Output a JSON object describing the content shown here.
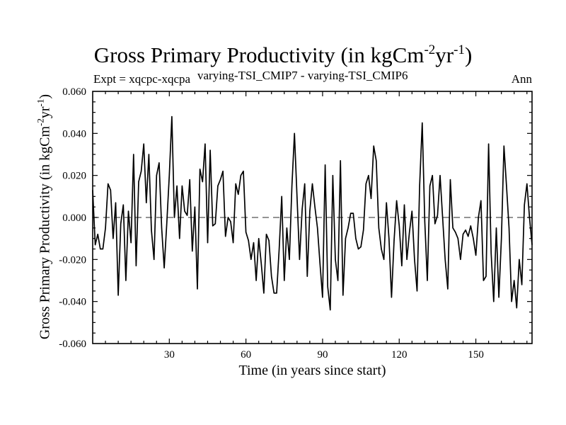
{
  "chart_data": {
    "type": "line",
    "title": {
      "main": "Gross Primary Productivity (in kgCm",
      "sup1": "-2",
      "mid": "yr",
      "sup2": "-1",
      "end": ")"
    },
    "subtitle_left": "Expt = xqcpc-xqcpa",
    "subtitle_center": "varying-TSI_CMIP7 - varying-TSI_CMIP6",
    "subtitle_right": "Ann",
    "xlabel": "Time (in years since start)",
    "ylabel": {
      "main": "Gross Primary Productivity (in kgCm",
      "sup1": "-2",
      "mid": "yr",
      "sup2": "-1",
      "end": ")"
    },
    "xlim": [
      0,
      172
    ],
    "ylim": [
      -0.06,
      0.06
    ],
    "xticks": [
      30,
      60,
      90,
      120,
      150
    ],
    "yticks": [
      -0.06,
      -0.04,
      -0.02,
      0.0,
      0.02,
      0.04,
      0.06
    ],
    "ytick_labels": [
      "-0.060",
      "-0.040",
      "-0.020",
      "0.000",
      "0.020",
      "0.040",
      "0.060"
    ],
    "reference_line": 0.0,
    "x": [
      0,
      1,
      2,
      3,
      4,
      5,
      6,
      7,
      8,
      9,
      10,
      11,
      12,
      13,
      14,
      15,
      16,
      17,
      18,
      19,
      20,
      21,
      22,
      23,
      24,
      25,
      26,
      27,
      28,
      29,
      30,
      31,
      32,
      33,
      34,
      35,
      36,
      37,
      38,
      39,
      40,
      41,
      42,
      43,
      44,
      45,
      46,
      47,
      48,
      49,
      50,
      51,
      52,
      53,
      54,
      55,
      56,
      57,
      58,
      59,
      60,
      61,
      62,
      63,
      64,
      65,
      66,
      67,
      68,
      69,
      70,
      71,
      72,
      73,
      74,
      75,
      76,
      77,
      78,
      79,
      80,
      81,
      82,
      83,
      84,
      85,
      86,
      87,
      88,
      89,
      90,
      91,
      92,
      93,
      94,
      95,
      96,
      97,
      98,
      99,
      100,
      101,
      102,
      103,
      104,
      105,
      106,
      107,
      108,
      109,
      110,
      111,
      112,
      113,
      114,
      115,
      116,
      117,
      118,
      119,
      120,
      121,
      122,
      123,
      124,
      125,
      126,
      127,
      128,
      129,
      130,
      131,
      132,
      133,
      134,
      135,
      136,
      137,
      138,
      139,
      140,
      141,
      142,
      143,
      144,
      145,
      146,
      147,
      148,
      149,
      150,
      151,
      152,
      153,
      154,
      155,
      156,
      157,
      158,
      159,
      160,
      161,
      162,
      163,
      164,
      165,
      166,
      167,
      168,
      169,
      170,
      171,
      172
    ],
    "values": [
      0.013,
      -0.013,
      -0.008,
      -0.015,
      -0.015,
      -0.005,
      0.016,
      0.013,
      -0.01,
      0.007,
      -0.037,
      -0.003,
      0.006,
      -0.03,
      0.003,
      -0.012,
      0.03,
      -0.023,
      0.017,
      0.022,
      0.035,
      0.007,
      0.03,
      -0.006,
      -0.02,
      0.02,
      0.026,
      -0.005,
      -0.024,
      -0.003,
      0.02,
      0.048,
      0.0,
      0.015,
      -0.01,
      0.015,
      0.003,
      0.001,
      0.018,
      -0.016,
      0.005,
      -0.034,
      0.023,
      0.017,
      0.035,
      -0.012,
      0.032,
      -0.004,
      -0.003,
      0.015,
      0.018,
      0.022,
      -0.009,
      0.0,
      -0.002,
      -0.012,
      0.016,
      0.011,
      0.02,
      0.022,
      -0.007,
      -0.011,
      -0.02,
      -0.012,
      -0.03,
      -0.01,
      -0.022,
      -0.036,
      -0.008,
      -0.011,
      -0.028,
      -0.036,
      -0.036,
      -0.015,
      0.01,
      -0.03,
      -0.005,
      -0.02,
      0.015,
      0.04,
      0.01,
      -0.02,
      0.004,
      0.016,
      -0.028,
      0.003,
      0.016,
      0.005,
      -0.005,
      -0.022,
      -0.038,
      0.025,
      -0.033,
      -0.044,
      0.02,
      -0.02,
      -0.03,
      0.027,
      -0.037,
      -0.01,
      -0.005,
      0.002,
      0.002,
      -0.01,
      -0.015,
      -0.014,
      -0.006,
      0.016,
      0.02,
      0.009,
      0.034,
      0.027,
      -0.005,
      -0.015,
      -0.02,
      0.007,
      -0.01,
      -0.038,
      -0.011,
      0.008,
      -0.004,
      -0.023,
      0.006,
      -0.02,
      -0.007,
      0.003,
      -0.02,
      -0.035,
      0.015,
      0.045,
      -0.002,
      -0.03,
      0.015,
      0.02,
      -0.003,
      0.001,
      0.02,
      0.0,
      -0.02,
      -0.034,
      0.018,
      -0.005,
      -0.007,
      -0.01,
      -0.02,
      -0.008,
      -0.006,
      -0.009,
      -0.004,
      -0.01,
      -0.018,
      0.0,
      0.008,
      -0.03,
      -0.028,
      0.035,
      -0.017,
      -0.04,
      -0.005,
      -0.038,
      -0.01,
      0.034,
      0.015,
      -0.005,
      -0.04,
      -0.03,
      -0.043,
      -0.02,
      -0.032,
      0.006,
      0.016,
      0.0,
      -0.013
    ]
  }
}
